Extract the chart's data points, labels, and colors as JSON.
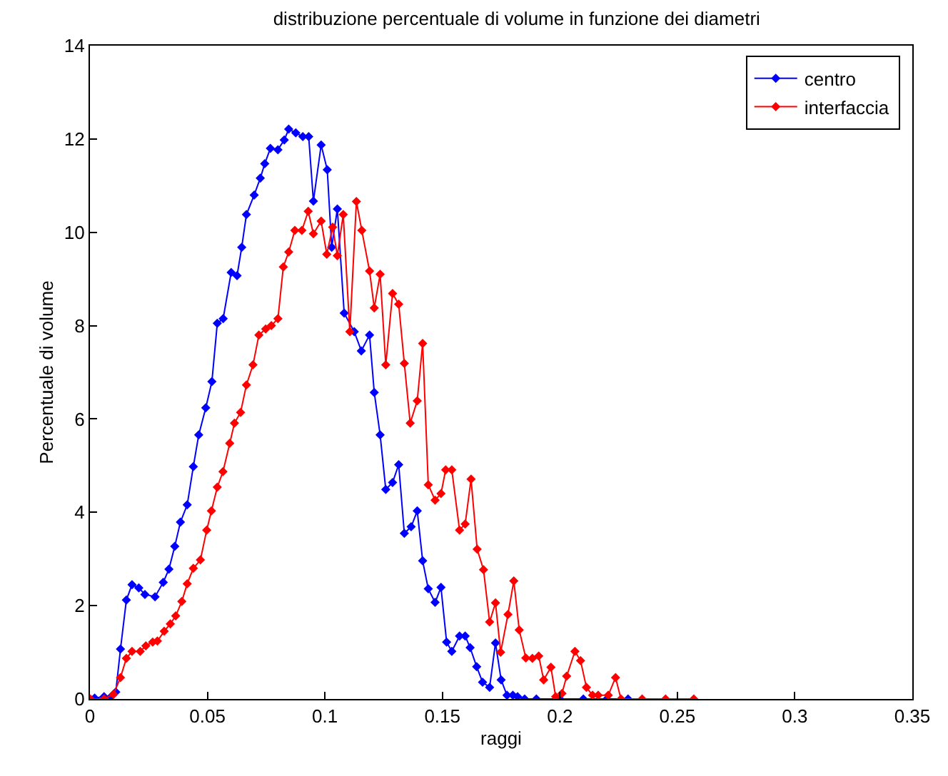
{
  "chart_data": {
    "type": "line",
    "title": "distribuzione percentuale di volume in funzione dei diametri",
    "xlabel": "raggi",
    "ylabel": "Percentuale di volume",
    "xlim": [
      0,
      0.35
    ],
    "xticks": [
      0,
      0.05,
      0.1,
      0.15,
      0.2,
      0.25,
      0.3,
      0.35
    ],
    "ylim": [
      0,
      14
    ],
    "yticks": [
      0,
      2,
      4,
      6,
      8,
      10,
      12,
      14
    ],
    "grid": false,
    "legend": "top right",
    "marker": "diamond",
    "line_style": "solid",
    "series": [
      {
        "name": "centro",
        "color": "#0000ff",
        "x": [
          0.002,
          0.006,
          0.009,
          0.011,
          0.013,
          0.0155,
          0.0179,
          0.0208,
          0.0234,
          0.0277,
          0.0312,
          0.0336,
          0.0361,
          0.0385,
          0.0414,
          0.044,
          0.0463,
          0.0493,
          0.0519,
          0.0542,
          0.0567,
          0.0601,
          0.0626,
          0.0646,
          0.0666,
          0.0699,
          0.0725,
          0.0744,
          0.0768,
          0.08,
          0.0827,
          0.0846,
          0.0876,
          0.0906,
          0.0931,
          0.0951,
          0.0984,
          0.101,
          0.1029,
          0.1053,
          0.1082,
          0.1125,
          0.1155,
          0.119,
          0.121,
          0.1235,
          0.1259,
          0.1288,
          0.1314,
          0.1338,
          0.1367,
          0.1393,
          0.1416,
          0.144,
          0.1469,
          0.1494,
          0.1518,
          0.154,
          0.1573,
          0.1597,
          0.1618,
          0.1646,
          0.1671,
          0.1701,
          0.1726,
          0.175,
          0.1775,
          0.18,
          0.182,
          0.185,
          0.19,
          0.2,
          0.21,
          0.22,
          0.229
        ],
        "values": [
          0.02,
          0.05,
          0.05,
          0.15,
          1.07,
          2.12,
          2.45,
          2.38,
          2.24,
          2.19,
          2.5,
          2.78,
          3.27,
          3.79,
          4.16,
          4.98,
          5.66,
          6.24,
          6.8,
          8.05,
          8.15,
          9.14,
          9.07,
          9.68,
          10.38,
          10.8,
          11.16,
          11.47,
          11.8,
          11.77,
          11.98,
          12.21,
          12.13,
          12.05,
          12.05,
          10.67,
          11.87,
          11.34,
          9.68,
          10.5,
          8.27,
          7.87,
          7.46,
          7.8,
          6.57,
          5.66,
          4.49,
          4.64,
          5.02,
          3.55,
          3.69,
          4.03,
          2.96,
          2.36,
          2.07,
          2.39,
          1.22,
          1.02,
          1.35,
          1.35,
          1.1,
          0.69,
          0.36,
          0.25,
          1.2,
          0.41,
          0.08,
          0.08,
          0.05,
          0.0,
          0.0,
          0.0,
          0.0,
          0.0,
          0.0
        ]
      },
      {
        "name": "interfaccia",
        "color": "#ff0000",
        "x": [
          0.0002,
          0.006,
          0.01,
          0.013,
          0.0155,
          0.0179,
          0.0214,
          0.0238,
          0.0267,
          0.0287,
          0.0316,
          0.0342,
          0.0365,
          0.0391,
          0.0414,
          0.044,
          0.047,
          0.0497,
          0.0517,
          0.0542,
          0.0566,
          0.0595,
          0.0615,
          0.0641,
          0.0666,
          0.0694,
          0.0719,
          0.0748,
          0.0772,
          0.08,
          0.0823,
          0.0846,
          0.0872,
          0.0902,
          0.0929,
          0.0951,
          0.0984,
          0.1008,
          0.1033,
          0.1053,
          0.1078,
          0.1106,
          0.1134,
          0.1157,
          0.119,
          0.121,
          0.1235,
          0.1259,
          0.1288,
          0.1314,
          0.1338,
          0.1363,
          0.1393,
          0.1416,
          0.144,
          0.1469,
          0.1494,
          0.1514,
          0.154,
          0.1573,
          0.1597,
          0.1622,
          0.1648,
          0.1675,
          0.1701,
          0.1726,
          0.1748,
          0.1779,
          0.1804,
          0.1827,
          0.1855,
          0.1883,
          0.191,
          0.1931,
          0.1962,
          0.1982,
          0.2009,
          0.2029,
          0.2064,
          0.2088,
          0.2113,
          0.2139,
          0.2163,
          0.2206,
          0.2237,
          0.226,
          0.235,
          0.245,
          0.257
        ],
        "values": [
          0,
          0,
          0.1,
          0.46,
          0.87,
          1.02,
          1.02,
          1.14,
          1.22,
          1.24,
          1.45,
          1.61,
          1.78,
          2.09,
          2.47,
          2.8,
          2.98,
          3.62,
          4.03,
          4.54,
          4.87,
          5.48,
          5.91,
          6.14,
          6.73,
          7.16,
          7.8,
          7.93,
          8.0,
          8.15,
          9.26,
          9.58,
          10.04,
          10.04,
          10.45,
          9.97,
          10.24,
          9.53,
          10.11,
          9.5,
          10.38,
          7.87,
          10.66,
          10.04,
          9.17,
          8.38,
          9.1,
          7.16,
          8.69,
          8.46,
          7.19,
          5.91,
          6.39,
          7.62,
          4.59,
          4.26,
          4.4,
          4.91,
          4.91,
          3.62,
          3.75,
          4.71,
          3.21,
          2.77,
          1.65,
          2.06,
          1.0,
          1.81,
          2.53,
          1.48,
          0.88,
          0.87,
          0.92,
          0.41,
          0.68,
          0.05,
          0.12,
          0.49,
          1.02,
          0.82,
          0.25,
          0.08,
          0.08,
          0.08,
          0.46,
          0.0,
          0.0,
          0.0,
          0.0
        ]
      }
    ]
  }
}
